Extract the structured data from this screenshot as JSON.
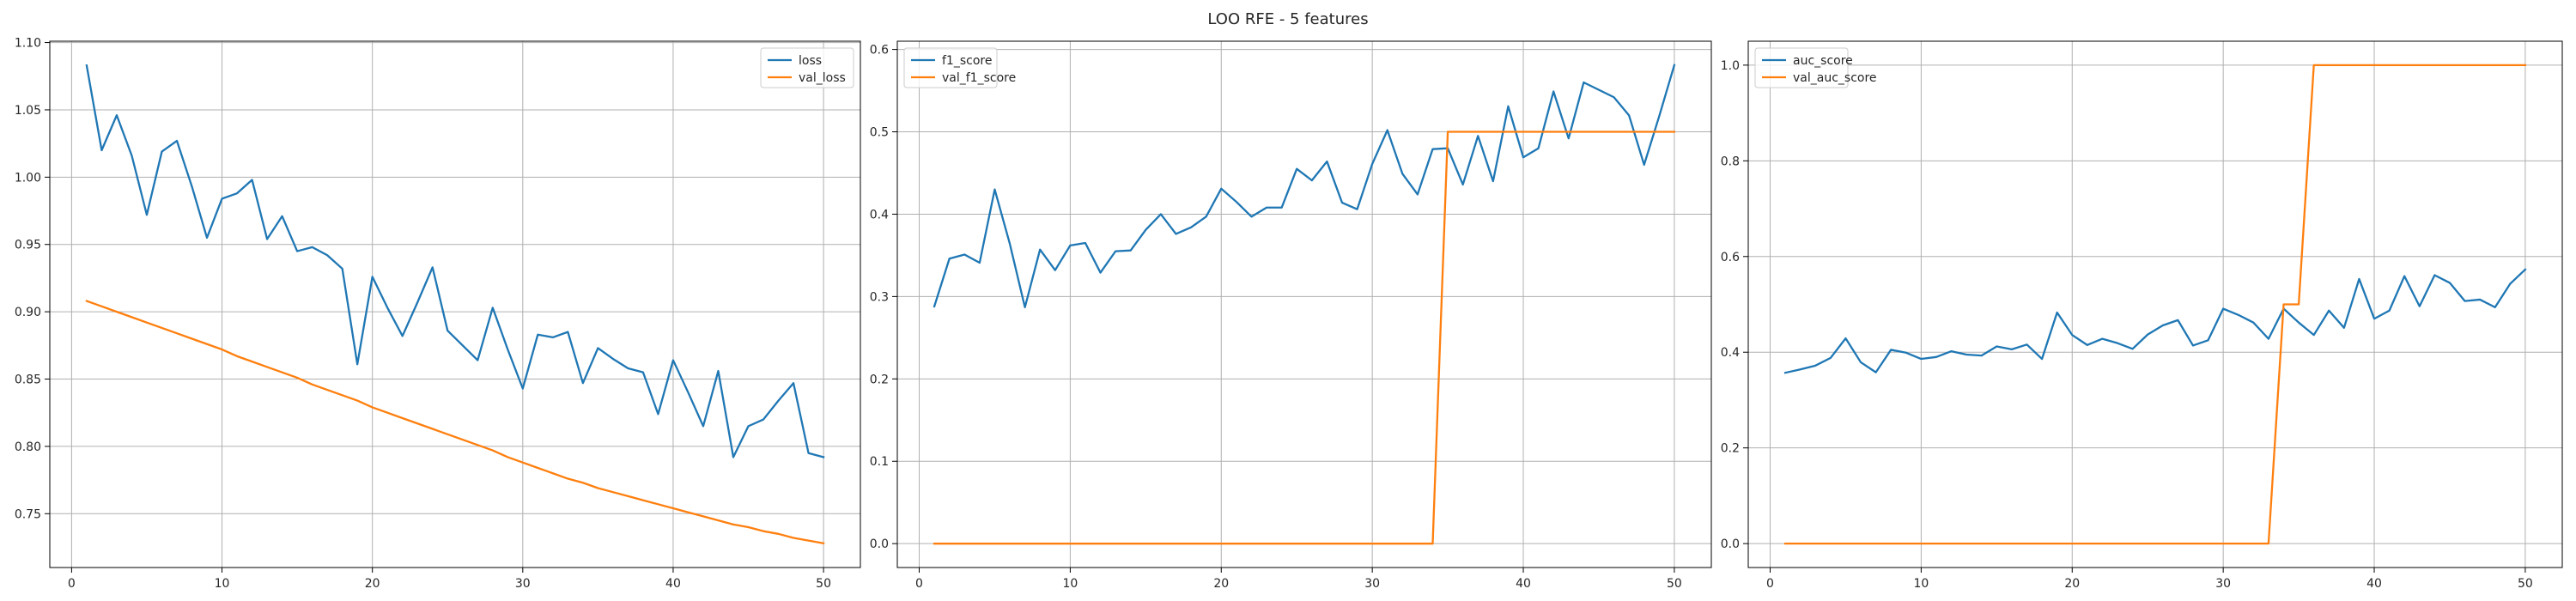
{
  "figure": {
    "title": "LOO RFE - 5 features"
  },
  "chart_data": [
    {
      "type": "line",
      "x": [
        1,
        2,
        3,
        4,
        5,
        6,
        7,
        8,
        9,
        10,
        11,
        12,
        13,
        14,
        15,
        16,
        17,
        18,
        19,
        20,
        21,
        22,
        23,
        24,
        25,
        26,
        27,
        28,
        29,
        30,
        31,
        32,
        33,
        34,
        35,
        36,
        37,
        38,
        39,
        40,
        41,
        42,
        43,
        44,
        45,
        46,
        47,
        48,
        49,
        50
      ],
      "series": [
        {
          "name": "loss",
          "color": "#1f77b4",
          "values": [
            1.083,
            1.02,
            1.046,
            1.016,
            0.972,
            1.019,
            1.027,
            0.993,
            0.955,
            0.984,
            0.988,
            0.998,
            0.954,
            0.971,
            0.945,
            0.948,
            0.942,
            0.932,
            0.861,
            0.926,
            0.903,
            0.882,
            0.907,
            0.933,
            0.886,
            0.875,
            0.864,
            0.903,
            0.872,
            0.843,
            0.883,
            0.881,
            0.885,
            0.847,
            0.873,
            0.865,
            0.858,
            0.855,
            0.824,
            0.864,
            0.84,
            0.815,
            0.856,
            0.792,
            0.815,
            0.82,
            0.834,
            0.847,
            0.795,
            0.792
          ]
        },
        {
          "name": "val_loss",
          "color": "#ff7f0e",
          "values": [
            0.908,
            0.904,
            0.9,
            0.896,
            0.892,
            0.888,
            0.884,
            0.88,
            0.876,
            0.872,
            0.867,
            0.863,
            0.859,
            0.855,
            0.851,
            0.846,
            0.842,
            0.838,
            0.834,
            0.829,
            0.825,
            0.821,
            0.817,
            0.813,
            0.809,
            0.805,
            0.801,
            0.797,
            0.792,
            0.788,
            0.784,
            0.78,
            0.776,
            0.773,
            0.769,
            0.766,
            0.763,
            0.76,
            0.757,
            0.754,
            0.751,
            0.748,
            0.745,
            0.742,
            0.74,
            0.737,
            0.735,
            0.732,
            0.73,
            0.728
          ]
        }
      ],
      "xlim": [
        -1.45,
        52.45
      ],
      "ylim": [
        0.71,
        1.101
      ],
      "xticks": [
        0,
        10,
        20,
        30,
        40,
        50
      ],
      "yticks": [
        0.75,
        0.8,
        0.85,
        0.9,
        0.95,
        1.0,
        1.05,
        1.1
      ],
      "ytick_labels": [
        "0.75",
        "0.80",
        "0.85",
        "0.90",
        "0.95",
        "1.00",
        "1.05",
        "1.10"
      ],
      "grid": true,
      "legend": "upper right"
    },
    {
      "type": "line",
      "x": [
        1,
        2,
        3,
        4,
        5,
        6,
        7,
        8,
        9,
        10,
        11,
        12,
        13,
        14,
        15,
        16,
        17,
        18,
        19,
        20,
        21,
        22,
        23,
        24,
        25,
        26,
        27,
        28,
        29,
        30,
        31,
        32,
        33,
        34,
        35,
        36,
        37,
        38,
        39,
        40,
        41,
        42,
        43,
        44,
        45,
        46,
        47,
        48,
        49,
        50
      ],
      "series": [
        {
          "name": "f1_score",
          "color": "#1f77b4",
          "values": [
            0.288,
            0.346,
            0.351,
            0.341,
            0.43,
            0.364,
            0.287,
            0.357,
            0.332,
            0.362,
            0.365,
            0.329,
            0.355,
            0.356,
            0.381,
            0.4,
            0.376,
            0.384,
            0.397,
            0.431,
            0.415,
            0.397,
            0.408,
            0.408,
            0.455,
            0.441,
            0.464,
            0.414,
            0.406,
            0.461,
            0.502,
            0.449,
            0.424,
            0.479,
            0.48,
            0.436,
            0.495,
            0.44,
            0.531,
            0.469,
            0.48,
            0.549,
            0.492,
            0.56,
            0.551,
            0.542,
            0.52,
            0.46,
            0.519,
            0.581
          ]
        },
        {
          "name": "val_f1_score",
          "color": "#ff7f0e",
          "values": [
            0,
            0,
            0,
            0,
            0,
            0,
            0,
            0,
            0,
            0,
            0,
            0,
            0,
            0,
            0,
            0,
            0,
            0,
            0,
            0,
            0,
            0,
            0,
            0,
            0,
            0,
            0,
            0,
            0,
            0,
            0,
            0,
            0,
            0,
            0.5,
            0.5,
            0.5,
            0.5,
            0.5,
            0.5,
            0.5,
            0.5,
            0.5,
            0.5,
            0.5,
            0.5,
            0.5,
            0.5,
            0.5,
            0.5
          ]
        }
      ],
      "xlim": [
        -1.45,
        52.45
      ],
      "ylim": [
        -0.029,
        0.61
      ],
      "xticks": [
        0,
        10,
        20,
        30,
        40,
        50
      ],
      "yticks": [
        0.0,
        0.1,
        0.2,
        0.3,
        0.4,
        0.5,
        0.6
      ],
      "ytick_labels": [
        "0.0",
        "0.1",
        "0.2",
        "0.3",
        "0.4",
        "0.5",
        "0.6"
      ],
      "grid": true,
      "legend": "upper left"
    },
    {
      "type": "line",
      "x": [
        1,
        2,
        3,
        4,
        5,
        6,
        7,
        8,
        9,
        10,
        11,
        12,
        13,
        14,
        15,
        16,
        17,
        18,
        19,
        20,
        21,
        22,
        23,
        24,
        25,
        26,
        27,
        28,
        29,
        30,
        31,
        32,
        33,
        34,
        35,
        36,
        37,
        38,
        39,
        40,
        41,
        42,
        43,
        44,
        45,
        46,
        47,
        48,
        49,
        50
      ],
      "series": [
        {
          "name": "auc_score",
          "color": "#1f77b4",
          "values": [
            0.357,
            0.364,
            0.372,
            0.388,
            0.429,
            0.379,
            0.358,
            0.405,
            0.399,
            0.386,
            0.39,
            0.402,
            0.395,
            0.393,
            0.412,
            0.406,
            0.416,
            0.386,
            0.483,
            0.436,
            0.415,
            0.428,
            0.419,
            0.407,
            0.437,
            0.456,
            0.467,
            0.414,
            0.425,
            0.491,
            0.478,
            0.462,
            0.428,
            0.491,
            0.462,
            0.436,
            0.487,
            0.451,
            0.553,
            0.47,
            0.487,
            0.559,
            0.496,
            0.561,
            0.545,
            0.507,
            0.51,
            0.494,
            0.543,
            0.573
          ]
        },
        {
          "name": "val_auc_score",
          "color": "#ff7f0e",
          "values": [
            0,
            0,
            0,
            0,
            0,
            0,
            0,
            0,
            0,
            0,
            0,
            0,
            0,
            0,
            0,
            0,
            0,
            0,
            0,
            0,
            0,
            0,
            0,
            0,
            0,
            0,
            0,
            0,
            0,
            0,
            0,
            0,
            0,
            0.5,
            0.5,
            1,
            1,
            1,
            1,
            1,
            1,
            1,
            1,
            1,
            1,
            1,
            1,
            1,
            1,
            1
          ]
        }
      ],
      "xlim": [
        -1.45,
        52.45
      ],
      "ylim": [
        -0.05,
        1.05
      ],
      "xticks": [
        0,
        10,
        20,
        30,
        40,
        50
      ],
      "yticks": [
        0.0,
        0.2,
        0.4,
        0.6,
        0.8,
        1.0
      ],
      "ytick_labels": [
        "0.0",
        "0.2",
        "0.4",
        "0.6",
        "0.8",
        "1.0"
      ],
      "grid": true,
      "legend": "upper left"
    }
  ]
}
